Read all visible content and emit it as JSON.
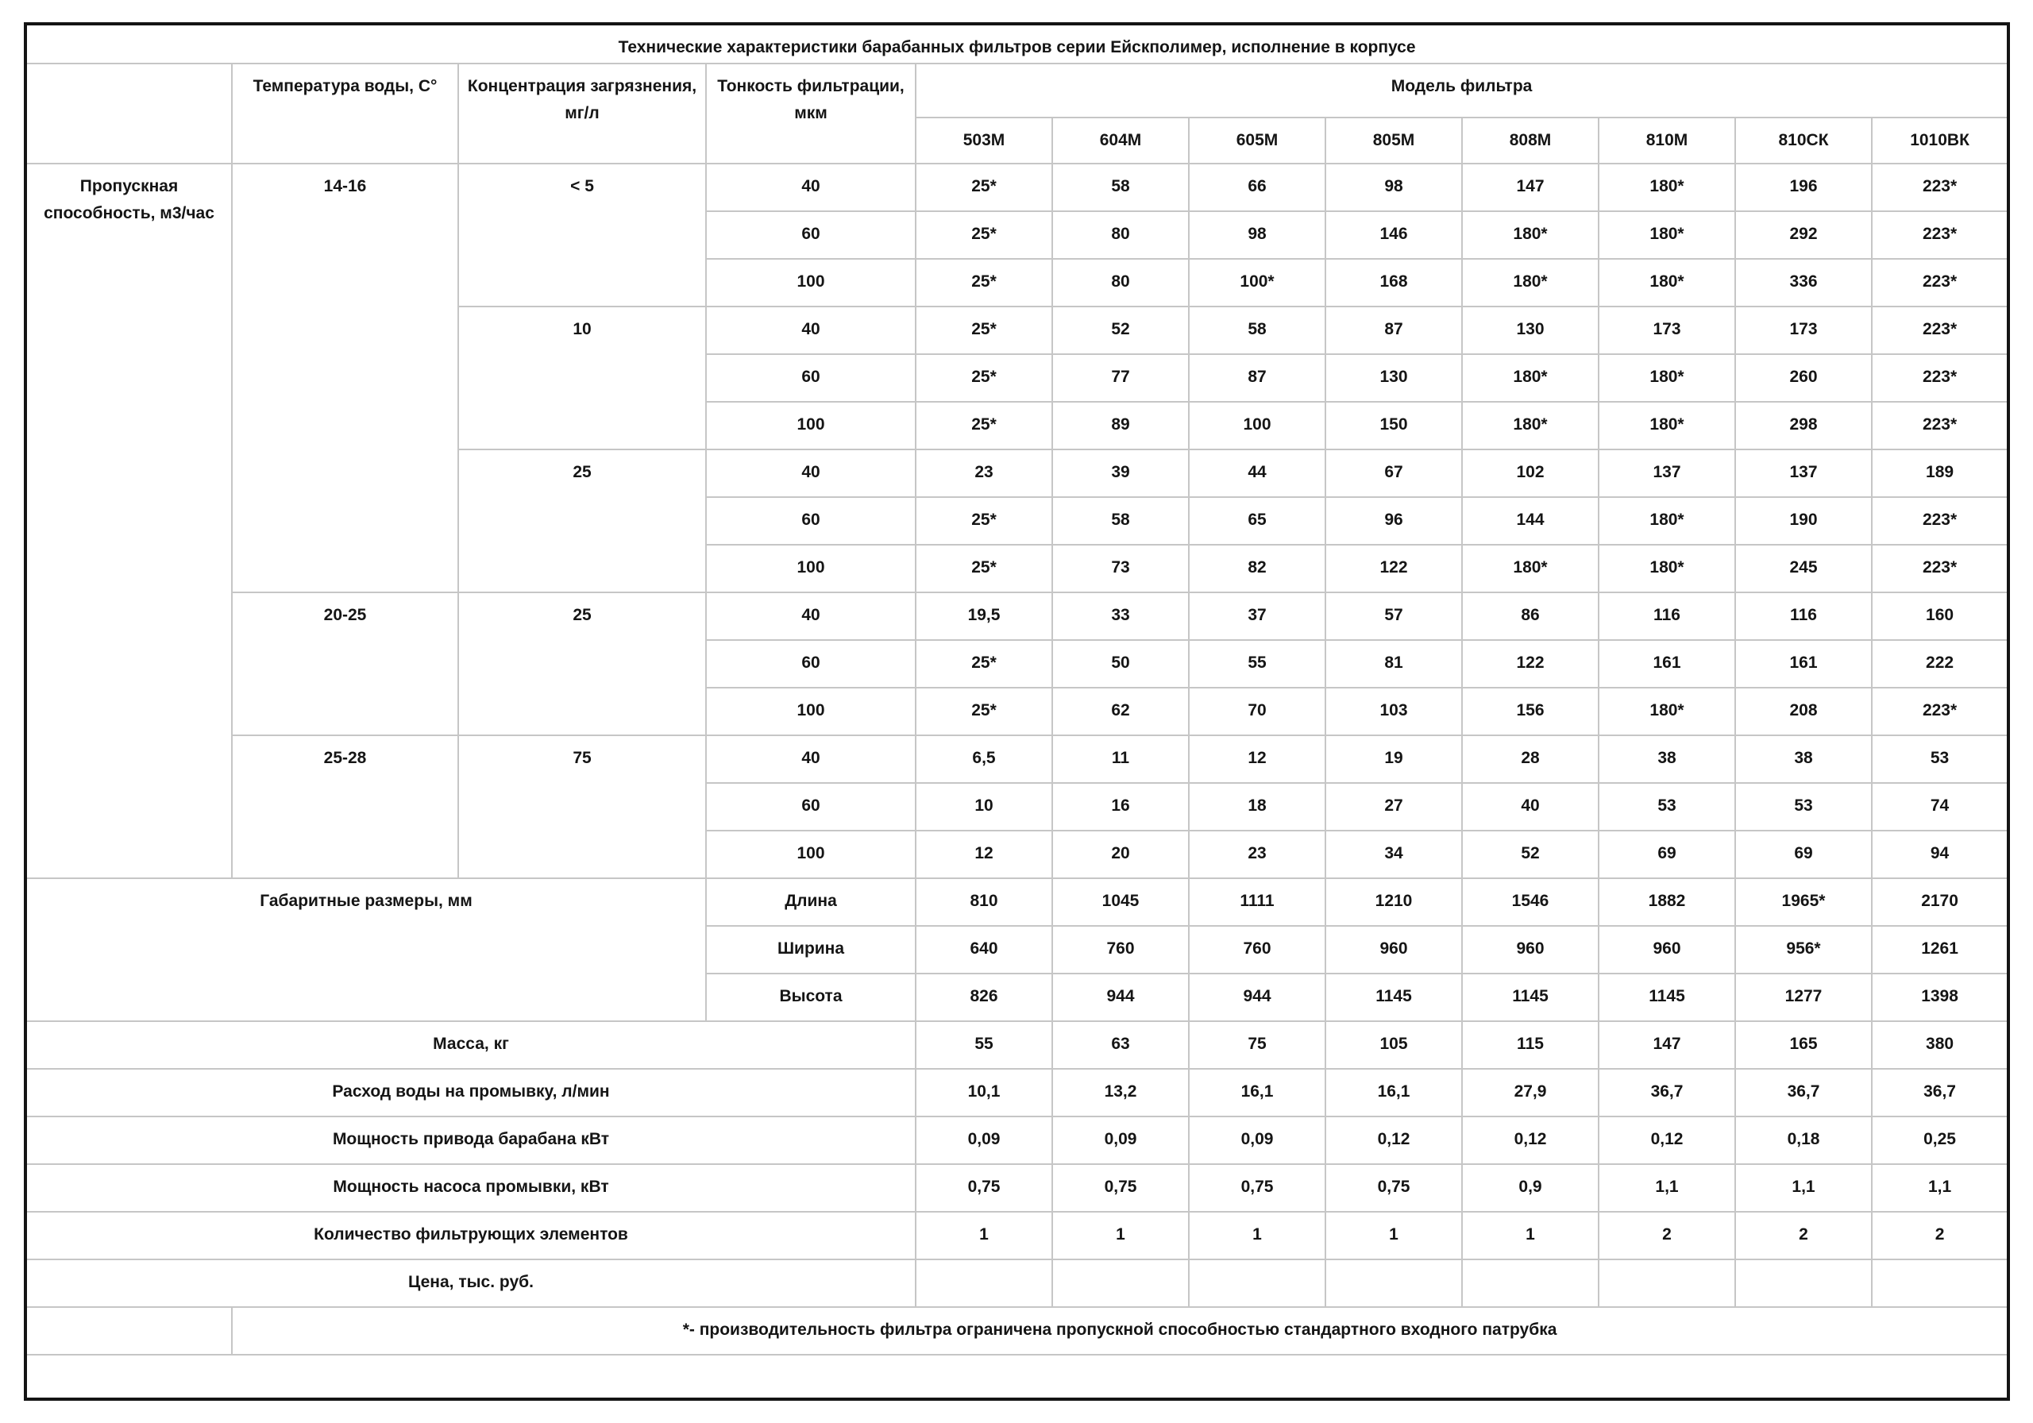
{
  "title": "Технические характеристики барабанных фильтров серии Ейскполимер, исполнение в корпусе",
  "headers": {
    "temperature": "Температура воды, С°",
    "concentration": "Концентрация загрязнения, мг/л",
    "fineness": "Тонкость фильтрации, мкм",
    "model_group": "Модель фильтра",
    "models": [
      "503М",
      "604М",
      "605М",
      "805М",
      "808М",
      "810М",
      "810СК",
      "1010ВК"
    ]
  },
  "throughput": {
    "label": "Пропускная способность, м3/час",
    "groups": [
      {
        "temperature": "14-16",
        "concentrations": [
          {
            "value": "< 5",
            "rows": [
              {
                "fineness": "40",
                "values": [
                  "25*",
                  "58",
                  "66",
                  "98",
                  "147",
                  "180*",
                  "196",
                  "223*"
                ]
              },
              {
                "fineness": "60",
                "values": [
                  "25*",
                  "80",
                  "98",
                  "146",
                  "180*",
                  "180*",
                  "292",
                  "223*"
                ]
              },
              {
                "fineness": "100",
                "values": [
                  "25*",
                  "80",
                  "100*",
                  "168",
                  "180*",
                  "180*",
                  "336",
                  "223*"
                ]
              }
            ]
          },
          {
            "value": "10",
            "rows": [
              {
                "fineness": "40",
                "values": [
                  "25*",
                  "52",
                  "58",
                  "87",
                  "130",
                  "173",
                  "173",
                  "223*"
                ]
              },
              {
                "fineness": "60",
                "values": [
                  "25*",
                  "77",
                  "87",
                  "130",
                  "180*",
                  "180*",
                  "260",
                  "223*"
                ]
              },
              {
                "fineness": "100",
                "values": [
                  "25*",
                  "89",
                  "100",
                  "150",
                  "180*",
                  "180*",
                  "298",
                  "223*"
                ]
              }
            ]
          },
          {
            "value": "25",
            "rows": [
              {
                "fineness": "40",
                "values": [
                  "23",
                  "39",
                  "44",
                  "67",
                  "102",
                  "137",
                  "137",
                  "189"
                ]
              },
              {
                "fineness": "60",
                "values": [
                  "25*",
                  "58",
                  "65",
                  "96",
                  "144",
                  "180*",
                  "190",
                  "223*"
                ]
              },
              {
                "fineness": "100",
                "values": [
                  "25*",
                  "73",
                  "82",
                  "122",
                  "180*",
                  "180*",
                  "245",
                  "223*"
                ]
              }
            ]
          }
        ]
      },
      {
        "temperature": "20-25",
        "concentrations": [
          {
            "value": "25",
            "rows": [
              {
                "fineness": "40",
                "values": [
                  "19,5",
                  "33",
                  "37",
                  "57",
                  "86",
                  "116",
                  "116",
                  "160"
                ]
              },
              {
                "fineness": "60",
                "values": [
                  "25*",
                  "50",
                  "55",
                  "81",
                  "122",
                  "161",
                  "161",
                  "222"
                ]
              },
              {
                "fineness": "100",
                "values": [
                  "25*",
                  "62",
                  "70",
                  "103",
                  "156",
                  "180*",
                  "208",
                  "223*"
                ]
              }
            ]
          }
        ]
      },
      {
        "temperature": "25-28",
        "concentrations": [
          {
            "value": "75",
            "rows": [
              {
                "fineness": "40",
                "values": [
                  "6,5",
                  "11",
                  "12",
                  "19",
                  "28",
                  "38",
                  "38",
                  "53"
                ]
              },
              {
                "fineness": "60",
                "values": [
                  "10",
                  "16",
                  "18",
                  "27",
                  "40",
                  "53",
                  "53",
                  "74"
                ]
              },
              {
                "fineness": "100",
                "values": [
                  "12",
                  "20",
                  "23",
                  "34",
                  "52",
                  "69",
                  "69",
                  "94"
                ]
              }
            ]
          }
        ]
      }
    ]
  },
  "dimensions": {
    "label": "Габаритные размеры, мм",
    "rows": [
      {
        "name": "Длина",
        "values": [
          "810",
          "1045",
          "1111",
          "1210",
          "1546",
          "1882",
          "1965*",
          "2170"
        ]
      },
      {
        "name": "Ширина",
        "values": [
          "640",
          "760",
          "760",
          "960",
          "960",
          "960",
          "956*",
          "1261"
        ]
      },
      {
        "name": "Высота",
        "values": [
          "826",
          "944",
          "944",
          "1145",
          "1145",
          "1145",
          "1277",
          "1398"
        ]
      }
    ]
  },
  "properties": [
    {
      "label": "Масса, кг",
      "values": [
        "55",
        "63",
        "75",
        "105",
        "115",
        "147",
        "165",
        "380"
      ]
    },
    {
      "label": "Расход воды на промывку, л/мин",
      "values": [
        "10,1",
        "13,2",
        "16,1",
        "16,1",
        "27,9",
        "36,7",
        "36,7",
        "36,7"
      ]
    },
    {
      "label": "Мощность привода барабана кВт",
      "values": [
        "0,09",
        "0,09",
        "0,09",
        "0,12",
        "0,12",
        "0,12",
        "0,18",
        "0,25"
      ]
    },
    {
      "label": "Мощность насоса промывки, кВт",
      "values": [
        "0,75",
        "0,75",
        "0,75",
        "0,75",
        "0,9",
        "1,1",
        "1,1",
        "1,1"
      ]
    },
    {
      "label": "Количество фильтрующих элементов",
      "values": [
        "1",
        "1",
        "1",
        "1",
        "1",
        "2",
        "2",
        "2"
      ]
    },
    {
      "label": "Цена, тыс. руб.",
      "values": [
        "",
        "",
        "",
        "",
        "",
        "",
        "",
        ""
      ]
    }
  ],
  "footnote": "*- производительность фильтра ограничена пропускной способностью стандартного входного патрубка",
  "colors": {
    "grid": "#c6c6c6",
    "outer_border": "#141414",
    "text": "#151515",
    "background": "#ffffff"
  }
}
